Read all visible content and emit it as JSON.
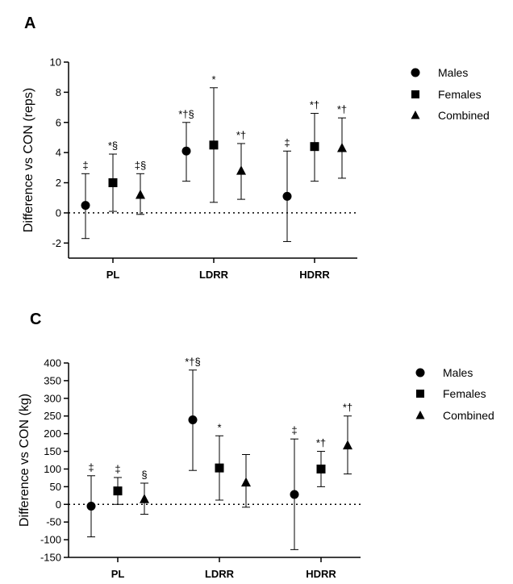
{
  "chart_data": [
    {
      "panel": "A",
      "type": "scatter",
      "ylabel": "Difference vs CON (reps)",
      "ylim": [
        -3,
        10
      ],
      "yticks": [
        -2,
        0,
        2,
        4,
        6,
        8,
        10
      ],
      "categories": [
        "PL",
        "LDRR",
        "HDRR"
      ],
      "reference_line": 0,
      "series": [
        {
          "name": "Males",
          "marker": "circle",
          "values": [
            0.5,
            4.1,
            1.1
          ],
          "err_low": [
            -1.7,
            2.1,
            -1.9
          ],
          "err_high": [
            2.6,
            6.0,
            4.1
          ],
          "sig": [
            "‡",
            "*†§",
            "‡"
          ]
        },
        {
          "name": "Females",
          "marker": "square",
          "values": [
            2.0,
            4.5,
            4.4
          ],
          "err_low": [
            0.1,
            0.7,
            2.1
          ],
          "err_high": [
            3.9,
            8.3,
            6.6
          ],
          "sig": [
            "*§",
            "*",
            "*†"
          ]
        },
        {
          "name": "Combined",
          "marker": "triangle",
          "values": [
            1.2,
            2.8,
            4.3
          ],
          "err_low": [
            -0.1,
            0.9,
            2.3
          ],
          "err_high": [
            2.6,
            4.6,
            6.3
          ],
          "sig": [
            "‡§",
            "*†",
            "*†"
          ]
        }
      ],
      "legend": [
        "Males",
        "Females",
        "Combined"
      ]
    },
    {
      "panel": "C",
      "type": "scatter",
      "ylabel": "Difference vs CON (kg)",
      "ylim": [
        -150,
        400
      ],
      "yticks": [
        -150,
        -100,
        -50,
        0,
        50,
        100,
        150,
        200,
        250,
        300,
        350,
        400
      ],
      "categories": [
        "PL",
        "LDRR",
        "HDRR"
      ],
      "reference_line": 0,
      "series": [
        {
          "name": "Males",
          "marker": "circle",
          "values": [
            -5,
            239,
            28
          ],
          "err_low": [
            -92,
            96,
            -128
          ],
          "err_high": [
            81,
            380,
            185
          ],
          "sig": [
            "‡",
            "*†§",
            "‡"
          ]
        },
        {
          "name": "Females",
          "marker": "square",
          "values": [
            38,
            103,
            100
          ],
          "err_low": [
            0,
            12,
            50
          ],
          "err_high": [
            76,
            194,
            150
          ],
          "sig": [
            "‡",
            "*",
            "*†"
          ]
        },
        {
          "name": "Combined",
          "marker": "triangle",
          "values": [
            15,
            62,
            167
          ],
          "err_low": [
            -28,
            -8,
            86
          ],
          "err_high": [
            60,
            141,
            250
          ],
          "sig": [
            "§",
            "",
            "*†"
          ]
        }
      ],
      "legend": [
        "Males",
        "Females",
        "Combined"
      ]
    }
  ]
}
